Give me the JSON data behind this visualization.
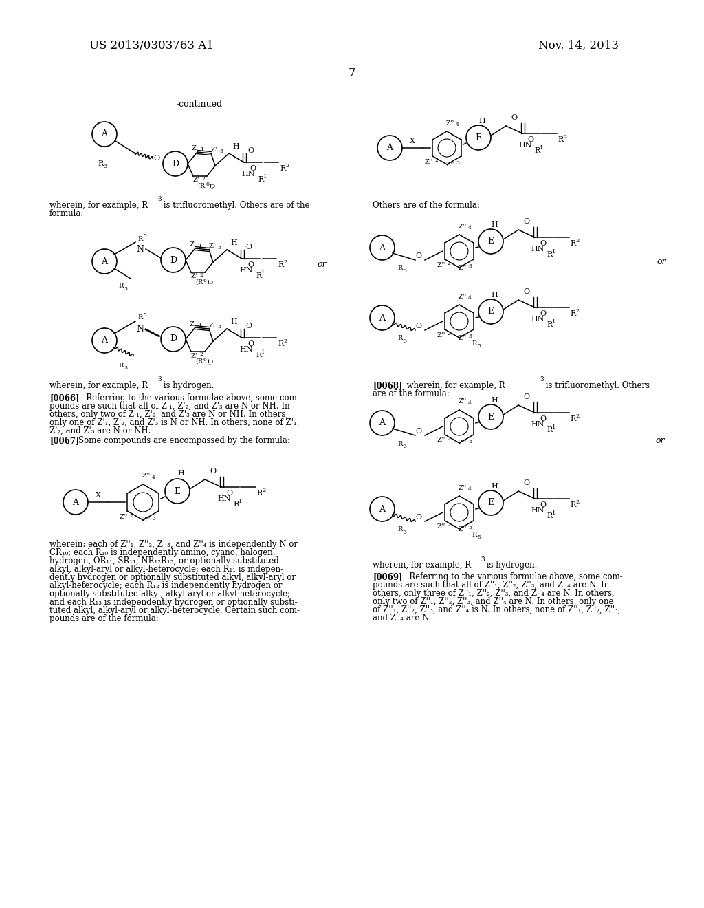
{
  "bg_color": "#ffffff",
  "text_color": "#000000",
  "header_left": "US 2013/0303763 A1",
  "header_right": "Nov. 14, 2013",
  "page_number": "7"
}
